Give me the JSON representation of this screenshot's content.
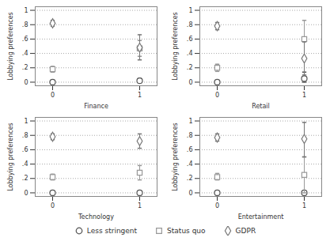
{
  "chart_data": [
    {
      "type": "scatter",
      "x_label": "Finance",
      "y_label": "Lobbying preferences",
      "x": [
        0,
        1
      ],
      "xlim": [
        -0.2,
        1.2
      ],
      "xticks": [
        0,
        1
      ],
      "ylim": [
        -0.05,
        1.05
      ],
      "yticks": [
        0,
        {
          "value": 0.2,
          "label": ".2"
        },
        {
          "value": 0.4,
          "label": ".4"
        },
        {
          "value": 0.6,
          "label": ".6"
        },
        {
          "value": 0.8,
          "label": ".8"
        },
        1
      ],
      "grid": true,
      "legend": "bottom",
      "series": [
        {
          "name": "Less stringent",
          "marker": "circle",
          "color": "#555555",
          "values": [
            0.0,
            0.02
          ],
          "ci_low": [
            0.0,
            0.0
          ],
          "ci_high": [
            0.0,
            0.05
          ]
        },
        {
          "name": "Status quo",
          "marker": "square",
          "color": "#999999",
          "values": [
            0.18,
            0.47
          ],
          "ci_low": [
            0.14,
            0.36
          ],
          "ci_high": [
            0.22,
            0.58
          ]
        },
        {
          "name": "GDPR",
          "marker": "diamond",
          "color": "#777777",
          "values": [
            0.82,
            0.48
          ],
          "ci_low": [
            0.78,
            0.31
          ],
          "ci_high": [
            0.86,
            0.66
          ]
        }
      ]
    },
    {
      "type": "scatter",
      "x_label": "Retail",
      "y_label": "Lobbying preferences",
      "x": [
        0,
        1
      ],
      "xlim": [
        -0.2,
        1.2
      ],
      "xticks": [
        0,
        1
      ],
      "ylim": [
        -0.05,
        1.05
      ],
      "yticks": [
        0,
        {
          "value": 0.2,
          "label": ".2"
        },
        {
          "value": 0.4,
          "label": ".4"
        },
        {
          "value": 0.6,
          "label": ".6"
        },
        {
          "value": 0.8,
          "label": ".8"
        },
        1
      ],
      "grid": true,
      "legend": "bottom",
      "series": [
        {
          "name": "Less stringent",
          "marker": "circle",
          "color": "#555555",
          "values": [
            0.0,
            0.05
          ],
          "ci_low": [
            0.0,
            0.0
          ],
          "ci_high": [
            0.0,
            0.14
          ]
        },
        {
          "name": "Status quo",
          "marker": "square",
          "color": "#999999",
          "values": [
            0.2,
            0.6
          ],
          "ci_low": [
            0.15,
            0.35
          ],
          "ci_high": [
            0.25,
            0.86
          ]
        },
        {
          "name": "GDPR",
          "marker": "diamond",
          "color": "#777777",
          "values": [
            0.78,
            0.33
          ],
          "ci_low": [
            0.73,
            0.1
          ],
          "ci_high": [
            0.83,
            0.56
          ]
        }
      ]
    },
    {
      "type": "scatter",
      "x_label": "Technology",
      "y_label": "Lobbying preferences",
      "x": [
        0,
        1
      ],
      "xlim": [
        -0.2,
        1.2
      ],
      "xticks": [
        0,
        1
      ],
      "ylim": [
        -0.05,
        1.05
      ],
      "yticks": [
        0,
        {
          "value": 0.2,
          "label": ".2"
        },
        {
          "value": 0.4,
          "label": ".4"
        },
        {
          "value": 0.6,
          "label": ".6"
        },
        {
          "value": 0.8,
          "label": ".8"
        },
        1
      ],
      "grid": true,
      "legend": "bottom",
      "series": [
        {
          "name": "Less stringent",
          "marker": "circle",
          "color": "#555555",
          "values": [
            0.0,
            0.0
          ],
          "ci_low": [
            0.0,
            0.0
          ],
          "ci_high": [
            0.0,
            0.0
          ]
        },
        {
          "name": "Status quo",
          "marker": "square",
          "color": "#999999",
          "values": [
            0.22,
            0.28
          ],
          "ci_low": [
            0.18,
            0.18
          ],
          "ci_high": [
            0.26,
            0.38
          ]
        },
        {
          "name": "GDPR",
          "marker": "diamond",
          "color": "#777777",
          "values": [
            0.78,
            0.72
          ],
          "ci_low": [
            0.74,
            0.62
          ],
          "ci_high": [
            0.82,
            0.82
          ]
        }
      ]
    },
    {
      "type": "scatter",
      "x_label": "Entertainment",
      "y_label": "Lobbying preferences",
      "x": [
        0,
        1
      ],
      "xlim": [
        -0.2,
        1.2
      ],
      "xticks": [
        0,
        1
      ],
      "ylim": [
        -0.05,
        1.05
      ],
      "yticks": [
        0,
        {
          "value": 0.2,
          "label": ".2"
        },
        {
          "value": 0.4,
          "label": ".4"
        },
        {
          "value": 0.6,
          "label": ".6"
        },
        {
          "value": 0.8,
          "label": ".8"
        },
        1
      ],
      "grid": true,
      "legend": "bottom",
      "series": [
        {
          "name": "Less stringent",
          "marker": "circle",
          "color": "#555555",
          "values": [
            0.0,
            0.0
          ],
          "ci_low": [
            0.0,
            0.0
          ],
          "ci_high": [
            0.0,
            0.0
          ]
        },
        {
          "name": "Status quo",
          "marker": "square",
          "color": "#999999",
          "values": [
            0.22,
            0.25
          ],
          "ci_low": [
            0.18,
            0.0
          ],
          "ci_high": [
            0.27,
            0.5
          ]
        },
        {
          "name": "GDPR",
          "marker": "diamond",
          "color": "#777777",
          "values": [
            0.77,
            0.75
          ],
          "ci_low": [
            0.72,
            0.5
          ],
          "ci_high": [
            0.82,
            0.98
          ]
        }
      ]
    }
  ]
}
